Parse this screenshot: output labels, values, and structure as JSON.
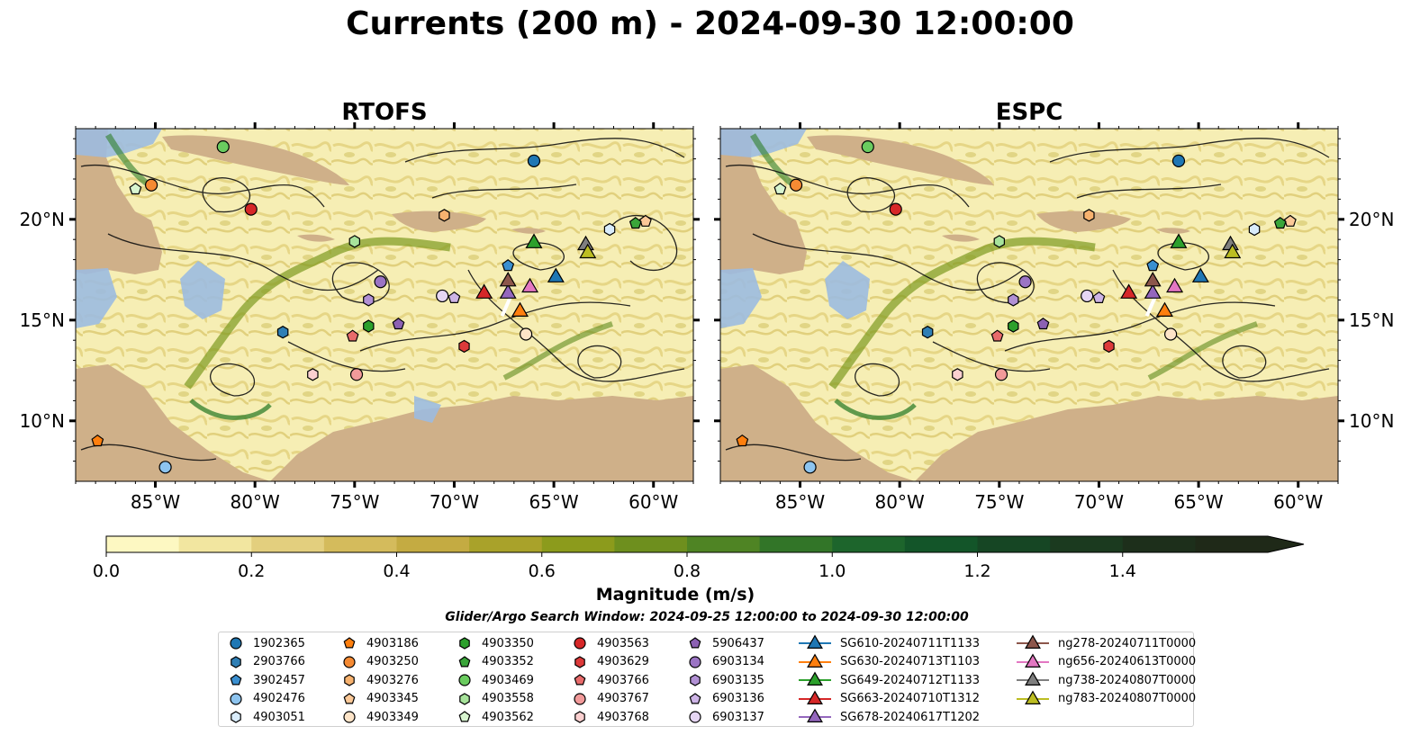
{
  "title": "Currents (200 m) - 2024-09-30 12:00:00",
  "panels": [
    {
      "title": "RTOFS"
    },
    {
      "title": "ESPC"
    }
  ],
  "axes": {
    "x_ticks": [
      "85°W",
      "80°W",
      "75°W",
      "70°W",
      "65°W",
      "60°W"
    ],
    "y_ticks": [
      "20°N",
      "15°N",
      "10°N"
    ],
    "lon_range": [
      -89,
      -58
    ],
    "lat_range": [
      7,
      24.5
    ]
  },
  "colorbar": {
    "label": "Magnitude (m/s)",
    "ticks": [
      "0.0",
      "0.2",
      "0.4",
      "0.6",
      "0.8",
      "1.0",
      "1.2",
      "1.4"
    ],
    "range": [
      0,
      1.6
    ],
    "extend": "max",
    "colors": [
      "#fdf8c2",
      "#f2e6a0",
      "#e3cf7e",
      "#d4bb5c",
      "#c4ab42",
      "#a9a22a",
      "#8c9b1c",
      "#6e8f1e",
      "#4f8424",
      "#327528",
      "#1d652c",
      "#135529",
      "#164624",
      "#1b3a1f",
      "#1d2f1b",
      "#1f2918"
    ]
  },
  "search_window": "Glider/Argo Search Window: 2024-09-25 12:00:00 to 2024-09-30 12:00:00",
  "colors": {
    "ocean": "#9cbbe0",
    "land": "#cfb089",
    "current_low": "#f6eeb4"
  },
  "legend": [
    {
      "label": "1902365",
      "marker": "circle",
      "color": "#1f77b4"
    },
    {
      "label": "2903766",
      "marker": "hexagon",
      "color": "#2f7fb5"
    },
    {
      "label": "3902457",
      "marker": "pentagon",
      "color": "#3a8fd0"
    },
    {
      "label": "4902476",
      "marker": "circle",
      "color": "#8dc4ef"
    },
    {
      "label": "4903051",
      "marker": "hexagon",
      "color": "#d9ecfb"
    },
    {
      "label": "4903186",
      "marker": "pentagon",
      "color": "#ff7f0e"
    },
    {
      "label": "4903250",
      "marker": "circle",
      "color": "#f58a33"
    },
    {
      "label": "4903276",
      "marker": "hexagon",
      "color": "#f7b26f"
    },
    {
      "label": "4903345",
      "marker": "pentagon",
      "color": "#fcc998"
    },
    {
      "label": "4903349",
      "marker": "circle",
      "color": "#fde4c8"
    },
    {
      "label": "4903350",
      "marker": "hexagon",
      "color": "#2ca02c"
    },
    {
      "label": "4903352",
      "marker": "pentagon",
      "color": "#3aa53a"
    },
    {
      "label": "4903469",
      "marker": "circle",
      "color": "#6acc5f"
    },
    {
      "label": "4903558",
      "marker": "hexagon",
      "color": "#a7e39b"
    },
    {
      "label": "4903562",
      "marker": "pentagon",
      "color": "#d8f5d0"
    },
    {
      "label": "4903563",
      "marker": "circle",
      "color": "#d62728"
    },
    {
      "label": "4903629",
      "marker": "hexagon",
      "color": "#dd3a3a"
    },
    {
      "label": "4903766",
      "marker": "pentagon",
      "color": "#e86b6b"
    },
    {
      "label": "4903767",
      "marker": "circle",
      "color": "#f29a9a"
    },
    {
      "label": "4903768",
      "marker": "hexagon",
      "color": "#fbd0d0"
    },
    {
      "label": "5906437",
      "marker": "pentagon",
      "color": "#8c61b3"
    },
    {
      "label": "6903134",
      "marker": "circle",
      "color": "#9b74c4"
    },
    {
      "label": "6903135",
      "marker": "hexagon",
      "color": "#b190d4"
    },
    {
      "label": "6903136",
      "marker": "pentagon",
      "color": "#cdb4e6"
    },
    {
      "label": "6903137",
      "marker": "circle",
      "color": "#e6d6f3"
    },
    {
      "label": "SG610-20240711T1133",
      "marker": "triangle",
      "color": "#1f77b4"
    },
    {
      "label": "SG630-20240713T1103",
      "marker": "triangle",
      "color": "#ff7f0e"
    },
    {
      "label": "SG649-20240712T1133",
      "marker": "triangle",
      "color": "#2ca02c"
    },
    {
      "label": "SG663-20240710T1312",
      "marker": "triangle",
      "color": "#d62728"
    },
    {
      "label": "SG678-20240617T1202",
      "marker": "triangle",
      "color": "#9467bd"
    },
    {
      "label": "ng278-20240711T0000",
      "marker": "triangle",
      "color": "#8c564b"
    },
    {
      "label": "ng656-20240613T0000",
      "marker": "triangle",
      "color": "#e377c2"
    },
    {
      "label": "ng738-20240807T0000",
      "marker": "triangle",
      "color": "#7f7f7f"
    },
    {
      "label": "ng783-20240807T0000",
      "marker": "triangle",
      "color": "#bcbd22"
    }
  ],
  "observations": [
    {
      "id": "1902365",
      "lon": -66.0,
      "lat": 22.9
    },
    {
      "id": "2903766",
      "lon": -78.6,
      "lat": 14.4
    },
    {
      "id": "3902457",
      "lon": -67.3,
      "lat": 17.7
    },
    {
      "id": "4902476",
      "lon": -84.5,
      "lat": 7.7
    },
    {
      "id": "4903051",
      "lon": -62.2,
      "lat": 19.5
    },
    {
      "id": "4903186",
      "lon": -87.9,
      "lat": 9.0
    },
    {
      "id": "4903250",
      "lon": -85.2,
      "lat": 21.7
    },
    {
      "id": "4903276",
      "lon": -70.5,
      "lat": 20.2
    },
    {
      "id": "4903345",
      "lon": -60.4,
      "lat": 19.9
    },
    {
      "id": "4903349",
      "lon": -66.4,
      "lat": 14.3
    },
    {
      "id": "4903350",
      "lon": -74.3,
      "lat": 14.7
    },
    {
      "id": "4903352",
      "lon": -60.9,
      "lat": 19.8
    },
    {
      "id": "4903469",
      "lon": -81.6,
      "lat": 23.6
    },
    {
      "id": "4903558",
      "lon": -75.0,
      "lat": 18.9
    },
    {
      "id": "4903562",
      "lon": -86.0,
      "lat": 21.5
    },
    {
      "id": "4903563",
      "lon": -80.2,
      "lat": 20.5
    },
    {
      "id": "4903629",
      "lon": -69.5,
      "lat": 13.7
    },
    {
      "id": "4903766",
      "lon": -75.1,
      "lat": 14.2
    },
    {
      "id": "4903767",
      "lon": -74.9,
      "lat": 12.3
    },
    {
      "id": "4903768",
      "lon": -77.1,
      "lat": 12.3
    },
    {
      "id": "5906437",
      "lon": -72.8,
      "lat": 14.8
    },
    {
      "id": "6903134",
      "lon": -73.7,
      "lat": 16.9
    },
    {
      "id": "6903135",
      "lon": -74.3,
      "lat": 16.0
    },
    {
      "id": "6903136",
      "lon": -70.0,
      "lat": 16.1
    },
    {
      "id": "6903137",
      "lon": -70.6,
      "lat": 16.2
    }
  ],
  "gliders": [
    {
      "id": "SG610-20240711T1133",
      "lon": -64.9,
      "lat": 17.2
    },
    {
      "id": "SG630-20240713T1103",
      "lon": -66.7,
      "lat": 15.5
    },
    {
      "id": "SG649-20240712T1133",
      "lon": -66.0,
      "lat": 18.9
    },
    {
      "id": "SG663-20240710T1312",
      "lon": -68.5,
      "lat": 16.4
    },
    {
      "id": "SG678-20240617T1202",
      "lon": -67.3,
      "lat": 16.4
    },
    {
      "id": "ng278-20240711T0000",
      "lon": -67.3,
      "lat": 17.0
    },
    {
      "id": "ng656-20240613T0000",
      "lon": -66.2,
      "lat": 16.7
    },
    {
      "id": "ng738-20240807T0000",
      "lon": -63.4,
      "lat": 18.8
    },
    {
      "id": "ng783-20240807T0000",
      "lon": -63.3,
      "lat": 18.4
    }
  ]
}
